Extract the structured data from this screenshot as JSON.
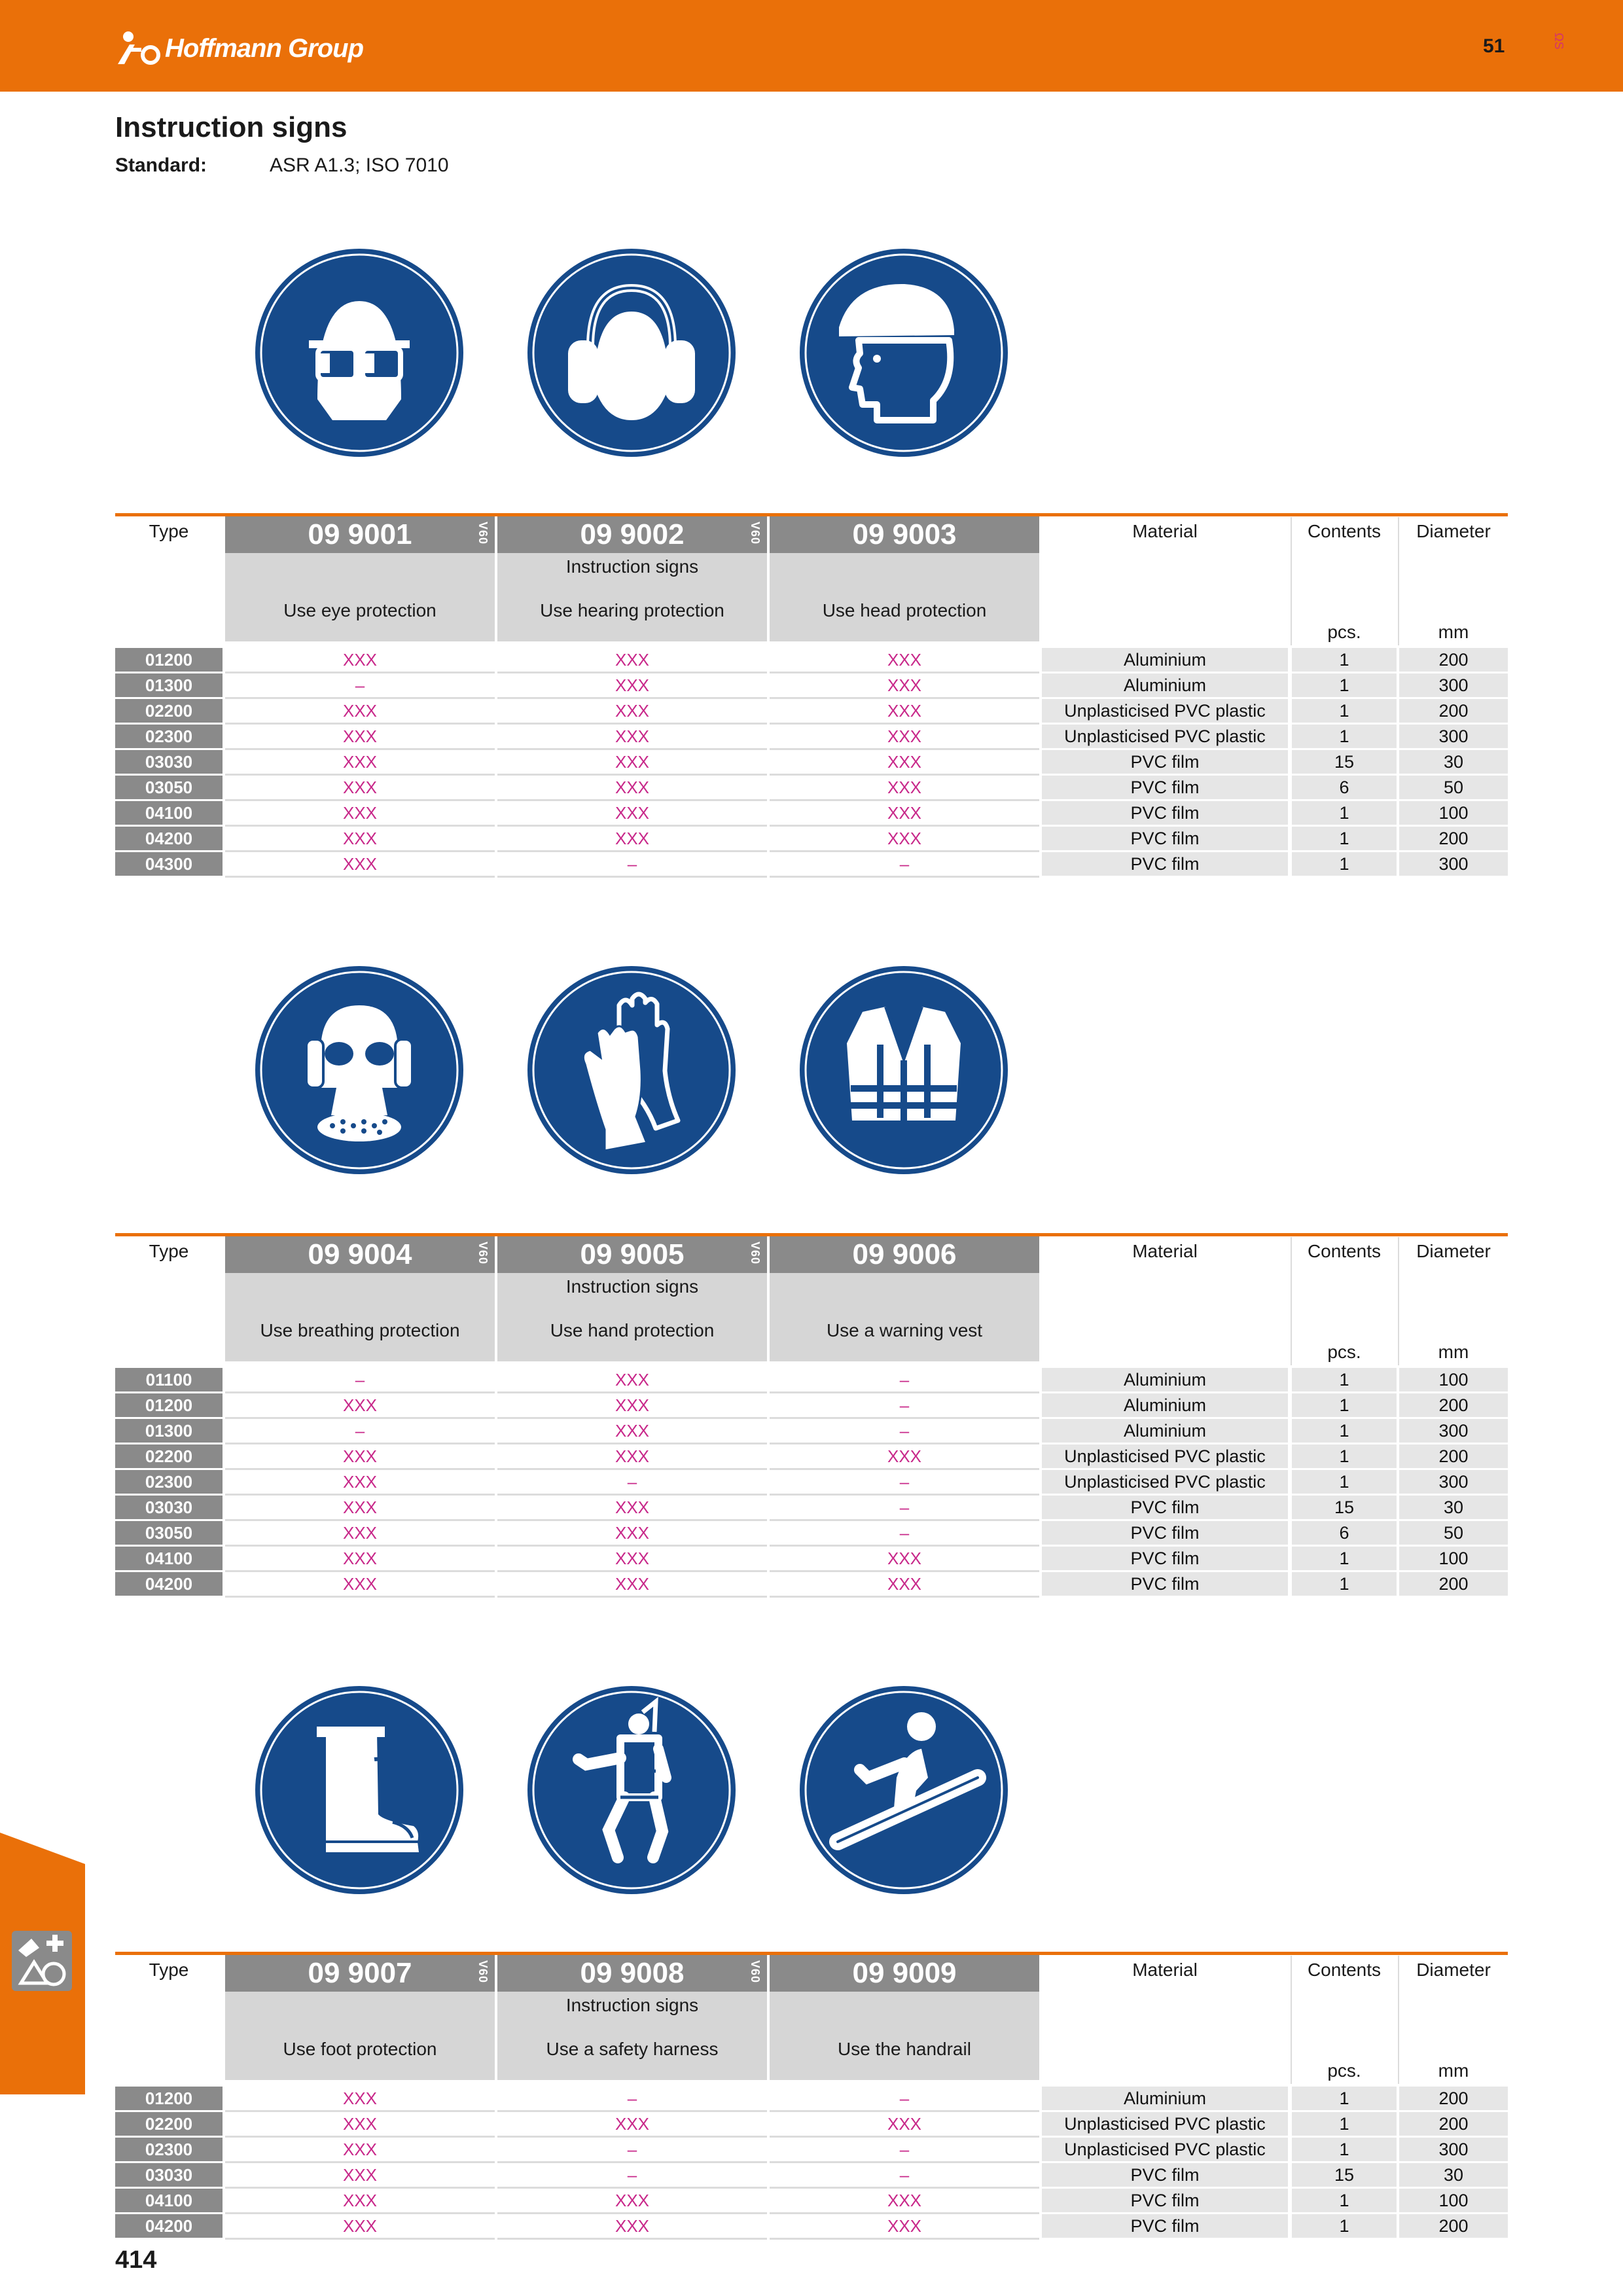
{
  "header": {
    "brand": "Hoffmann Group",
    "page_number": "51",
    "side_code": "ΩS"
  },
  "title": "Instruction signs",
  "standard": {
    "label": "Standard:",
    "value": "ASR A1.3; ISO 7010"
  },
  "column_labels": {
    "type": "Type",
    "material": "Material",
    "contents": "Contents",
    "diameter": "Diameter",
    "contents_unit": "pcs.",
    "diameter_unit": "mm",
    "group": "Instruction signs",
    "vtag": "V60"
  },
  "tables": [
    {
      "articles": [
        {
          "number": "09 9001",
          "name": "Use eye protection",
          "icon": "eye-protection-icon"
        },
        {
          "number": "09 9002",
          "name": "Use hearing protection",
          "icon": "hearing-protection-icon"
        },
        {
          "number": "09 9003",
          "name": "Use head protection",
          "icon": "head-protection-icon"
        }
      ],
      "rows": [
        {
          "type": "01200",
          "values": [
            "XXX",
            "XXX",
            "XXX"
          ],
          "material": "Aluminium",
          "contents": "1",
          "diameter": "200"
        },
        {
          "type": "01300",
          "values": [
            "–",
            "XXX",
            "XXX"
          ],
          "material": "Aluminium",
          "contents": "1",
          "diameter": "300"
        },
        {
          "type": "02200",
          "values": [
            "XXX",
            "XXX",
            "XXX"
          ],
          "material": "Unplasticised PVC plastic",
          "contents": "1",
          "diameter": "200"
        },
        {
          "type": "02300",
          "values": [
            "XXX",
            "XXX",
            "XXX"
          ],
          "material": "Unplasticised PVC plastic",
          "contents": "1",
          "diameter": "300"
        },
        {
          "type": "03030",
          "values": [
            "XXX",
            "XXX",
            "XXX"
          ],
          "material": "PVC film",
          "contents": "15",
          "diameter": "30"
        },
        {
          "type": "03050",
          "values": [
            "XXX",
            "XXX",
            "XXX"
          ],
          "material": "PVC film",
          "contents": "6",
          "diameter": "50"
        },
        {
          "type": "04100",
          "values": [
            "XXX",
            "XXX",
            "XXX"
          ],
          "material": "PVC film",
          "contents": "1",
          "diameter": "100"
        },
        {
          "type": "04200",
          "values": [
            "XXX",
            "XXX",
            "XXX"
          ],
          "material": "PVC film",
          "contents": "1",
          "diameter": "200"
        },
        {
          "type": "04300",
          "values": [
            "XXX",
            "–",
            "–"
          ],
          "material": "PVC film",
          "contents": "1",
          "diameter": "300"
        }
      ]
    },
    {
      "articles": [
        {
          "number": "09 9004",
          "name": "Use breathing protection",
          "icon": "breathing-protection-icon"
        },
        {
          "number": "09 9005",
          "name": "Use hand protection",
          "icon": "hand-protection-icon"
        },
        {
          "number": "09 9006",
          "name": "Use a warning vest",
          "icon": "warning-vest-icon"
        }
      ],
      "rows": [
        {
          "type": "01100",
          "values": [
            "–",
            "XXX",
            "–"
          ],
          "material": "Aluminium",
          "contents": "1",
          "diameter": "100"
        },
        {
          "type": "01200",
          "values": [
            "XXX",
            "XXX",
            "–"
          ],
          "material": "Aluminium",
          "contents": "1",
          "diameter": "200"
        },
        {
          "type": "01300",
          "values": [
            "–",
            "XXX",
            "–"
          ],
          "material": "Aluminium",
          "contents": "1",
          "diameter": "300"
        },
        {
          "type": "02200",
          "values": [
            "XXX",
            "XXX",
            "XXX"
          ],
          "material": "Unplasticised PVC plastic",
          "contents": "1",
          "diameter": "200"
        },
        {
          "type": "02300",
          "values": [
            "XXX",
            "–",
            "–"
          ],
          "material": "Unplasticised PVC plastic",
          "contents": "1",
          "diameter": "300"
        },
        {
          "type": "03030",
          "values": [
            "XXX",
            "XXX",
            "–"
          ],
          "material": "PVC film",
          "contents": "15",
          "diameter": "30"
        },
        {
          "type": "03050",
          "values": [
            "XXX",
            "XXX",
            "–"
          ],
          "material": "PVC film",
          "contents": "6",
          "diameter": "50"
        },
        {
          "type": "04100",
          "values": [
            "XXX",
            "XXX",
            "XXX"
          ],
          "material": "PVC film",
          "contents": "1",
          "diameter": "100"
        },
        {
          "type": "04200",
          "values": [
            "XXX",
            "XXX",
            "XXX"
          ],
          "material": "PVC film",
          "contents": "1",
          "diameter": "200"
        }
      ]
    },
    {
      "articles": [
        {
          "number": "09 9007",
          "name": "Use foot protection",
          "icon": "foot-protection-icon"
        },
        {
          "number": "09 9008",
          "name": "Use a safety harness",
          "icon": "safety-harness-icon"
        },
        {
          "number": "09 9009",
          "name": "Use the handrail",
          "icon": "handrail-icon"
        }
      ],
      "rows": [
        {
          "type": "01200",
          "values": [
            "XXX",
            "–",
            "–"
          ],
          "material": "Aluminium",
          "contents": "1",
          "diameter": "200"
        },
        {
          "type": "02200",
          "values": [
            "XXX",
            "XXX",
            "XXX"
          ],
          "material": "Unplasticised PVC plastic",
          "contents": "1",
          "diameter": "200"
        },
        {
          "type": "02300",
          "values": [
            "XXX",
            "–",
            "–"
          ],
          "material": "Unplasticised PVC plastic",
          "contents": "1",
          "diameter": "300"
        },
        {
          "type": "03030",
          "values": [
            "XXX",
            "–",
            "–"
          ],
          "material": "PVC film",
          "contents": "15",
          "diameter": "30"
        },
        {
          "type": "04100",
          "values": [
            "XXX",
            "XXX",
            "XXX"
          ],
          "material": "PVC film",
          "contents": "1",
          "diameter": "100"
        },
        {
          "type": "04200",
          "values": [
            "XXX",
            "XXX",
            "XXX"
          ],
          "material": "PVC film",
          "contents": "1",
          "diameter": "200"
        }
      ]
    }
  ],
  "footer": {
    "page_number": "414",
    "side_icon": "safety-signs-icon"
  },
  "colors": {
    "brand_orange": "#ea7009",
    "sign_blue": "#164a8a",
    "value_magenta": "#c8288a"
  }
}
